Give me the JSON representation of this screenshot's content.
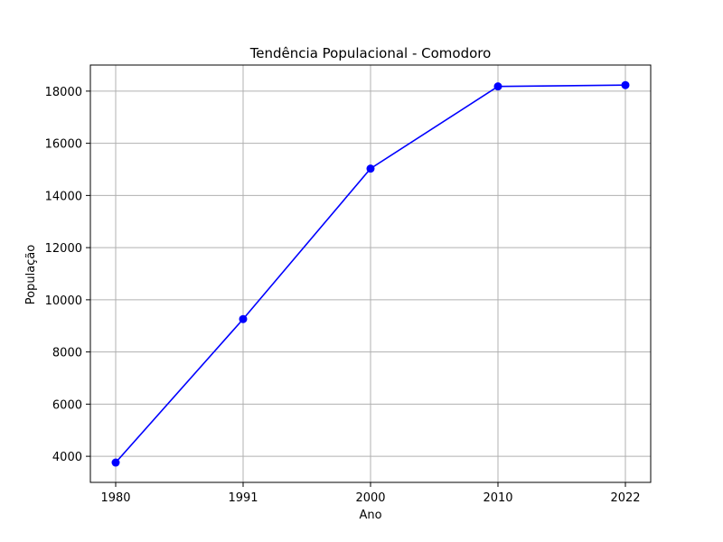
{
  "chart_data": {
    "type": "line",
    "title": "Tendência Populacional - Comodoro",
    "xlabel": "Ano",
    "ylabel": "População",
    "categories": [
      "1980",
      "1991",
      "2000",
      "2010",
      "2022"
    ],
    "series": [
      {
        "values": [
          3760,
          9260,
          15030,
          18180,
          18230
        ],
        "color": "#0000ff",
        "marker": "circle"
      }
    ],
    "yticks": [
      4000,
      6000,
      8000,
      10000,
      12000,
      14000,
      16000,
      18000
    ],
    "ylim": [
      3000,
      19000
    ],
    "grid": true,
    "grid_color": "#b0b0b0",
    "axis_color": "#000000"
  }
}
